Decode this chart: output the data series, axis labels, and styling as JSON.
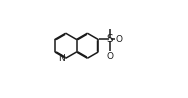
{
  "bg_color": "#ffffff",
  "line_color": "#1a1a1a",
  "line_width": 1.1,
  "figsize": [
    1.88,
    0.98
  ],
  "dpi": 100,
  "xlim": [
    0.0,
    1.0
  ],
  "ylim": [
    0.05,
    0.95
  ]
}
